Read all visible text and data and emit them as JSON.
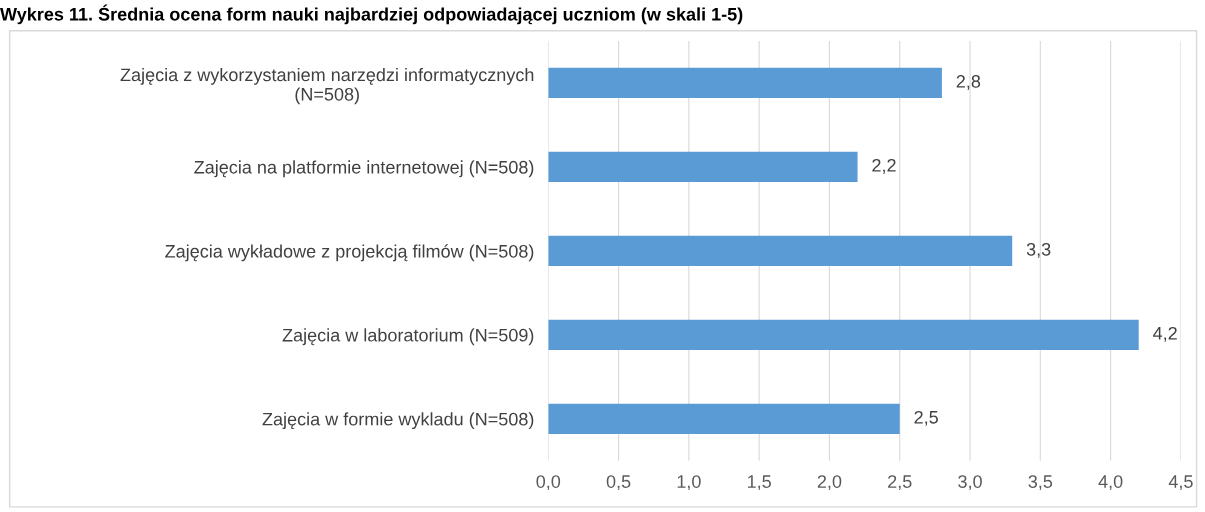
{
  "chart_data": {
    "type": "bar",
    "orientation": "horizontal",
    "title": "Wykres 11. Średnia ocena form nauki najbardziej odpowiadającej uczniom (w skali 1-5)",
    "categories": [
      "Zajęcia z wykorzystaniem narzędzi informatycznych\n(N=508)",
      "Zajęcia na platformie internetowej (N=508)",
      "Zajęcia wykładowe z projekcją filmów (N=508)",
      "Zajęcia w laboratorium (N=509)",
      "Zajęcia w formie wykladu (N=508)"
    ],
    "values": [
      2.8,
      2.2,
      3.3,
      4.2,
      2.5
    ],
    "value_labels": [
      "2,8",
      "2,2",
      "3,3",
      "4,2",
      "2,5"
    ],
    "color": "#5b9bd5",
    "xlim": [
      0,
      4.5
    ],
    "xticks": [
      {
        "value": 0,
        "label": "0,0"
      },
      {
        "value": 0.5,
        "label": "0,5"
      },
      {
        "value": 1,
        "label": "1,0"
      },
      {
        "value": 1.5,
        "label": "1,5"
      },
      {
        "value": 2,
        "label": "2,0"
      },
      {
        "value": 2.5,
        "label": "2,5"
      },
      {
        "value": 3,
        "label": "3,0"
      },
      {
        "value": 3.5,
        "label": "3,5"
      },
      {
        "value": 4,
        "label": "4,0"
      },
      {
        "value": 4.5,
        "label": "4,5"
      }
    ],
    "grid": "x"
  }
}
